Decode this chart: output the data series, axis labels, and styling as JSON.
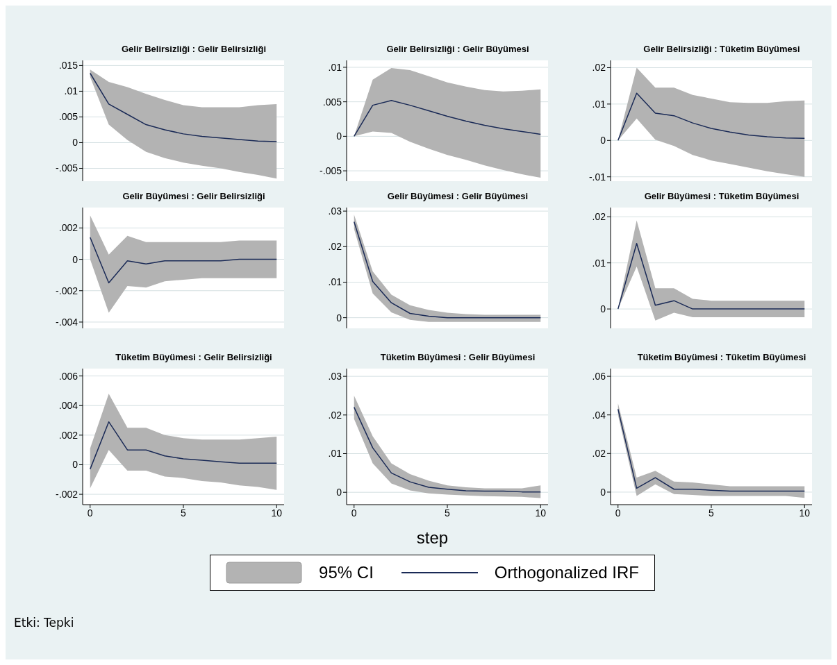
{
  "chart_data": [
    {
      "type": "line",
      "title": "Gelir Belirsizliği : Gelir Belirsizliği",
      "x": [
        0,
        1,
        2,
        3,
        4,
        5,
        6,
        7,
        8,
        9,
        10
      ],
      "xlim": [
        -0.4,
        10.4
      ],
      "xticks": [
        0,
        5,
        10
      ],
      "ylim": [
        -0.0075,
        0.016
      ],
      "yticks": [
        {
          "value": 0.015,
          "label": ".015"
        },
        {
          "value": 0.01,
          "label": ".01"
        },
        {
          "value": 0.005,
          "label": ".005"
        },
        {
          "value": 0,
          "label": "0"
        },
        {
          "value": -0.005,
          "label": "-.005"
        }
      ],
      "grid": "y",
      "tick_labels": "y",
      "series": [
        {
          "color": "#1a2a56",
          "values": [
            0.0135,
            0.0075,
            0.0055,
            0.0035,
            0.0025,
            0.0017,
            0.0012,
            0.0009,
            0.0006,
            0.0003,
            0.0002
          ],
          "lower": [
            0.0128,
            0.0035,
            0.0005,
            -0.0018,
            -0.003,
            -0.0039,
            -0.0045,
            -0.005,
            -0.0057,
            -0.0063,
            -0.007
          ],
          "upper": [
            0.0142,
            0.0118,
            0.0108,
            0.0095,
            0.0083,
            0.0073,
            0.0069,
            0.0069,
            0.0069,
            0.0073,
            0.0075
          ]
        }
      ]
    },
    {
      "type": "line",
      "title": "Gelir Belirsizliği : Gelir Büyümesi",
      "x": [
        0,
        1,
        2,
        3,
        4,
        5,
        6,
        7,
        8,
        9,
        10
      ],
      "xlim": [
        -0.4,
        10.4
      ],
      "xticks": [
        0,
        5,
        10
      ],
      "ylim": [
        -0.0065,
        0.011
      ],
      "yticks": [
        {
          "value": 0.01,
          "label": ".01"
        },
        {
          "value": 0.005,
          "label": ".005"
        },
        {
          "value": 0,
          "label": "0"
        },
        {
          "value": -0.005,
          "label": "-.005"
        }
      ],
      "grid": "y",
      "tick_labels": "y",
      "series": [
        {
          "color": "#1a2a56",
          "values": [
            0,
            0.0045,
            0.0052,
            0.0045,
            0.0037,
            0.0029,
            0.0022,
            0.0016,
            0.0011,
            0.0007,
            0.0003
          ],
          "lower": [
            0,
            0.0007,
            0.0005,
            -0.0008,
            -0.0018,
            -0.0027,
            -0.0034,
            -0.0042,
            -0.0049,
            -0.0055,
            -0.006
          ],
          "upper": [
            0,
            0.0082,
            0.0099,
            0.0096,
            0.0087,
            0.0078,
            0.0072,
            0.0067,
            0.0065,
            0.0066,
            0.0068
          ]
        }
      ]
    },
    {
      "type": "line",
      "title": "Gelir Belirsizliği : Tüketim Büyümesi",
      "x": [
        0,
        1,
        2,
        3,
        4,
        5,
        6,
        7,
        8,
        9,
        10
      ],
      "xlim": [
        -0.4,
        10.4
      ],
      "xticks": [
        0,
        5,
        10
      ],
      "ylim": [
        -0.0112,
        0.022
      ],
      "yticks": [
        {
          "value": 0.02,
          "label": ".02"
        },
        {
          "value": 0.01,
          "label": ".01"
        },
        {
          "value": 0,
          "label": "0"
        },
        {
          "value": -0.01,
          "label": "-.01"
        }
      ],
      "grid": "y",
      "tick_labels": "y",
      "series": [
        {
          "color": "#1a2a56",
          "values": [
            0,
            0.013,
            0.0075,
            0.0068,
            0.0048,
            0.0033,
            0.0023,
            0.0015,
            0.001,
            0.0007,
            0.0006
          ],
          "lower": [
            0,
            0.006,
            0.0002,
            -0.0015,
            -0.004,
            -0.0055,
            -0.0065,
            -0.0075,
            -0.0085,
            -0.0093,
            -0.01
          ],
          "upper": [
            0,
            0.02,
            0.0145,
            0.0145,
            0.0125,
            0.0115,
            0.0105,
            0.0103,
            0.0103,
            0.0108,
            0.011
          ]
        }
      ]
    },
    {
      "type": "line",
      "title": "Gelir Büyümesi : Gelir Belirsizliği",
      "x": [
        0,
        1,
        2,
        3,
        4,
        5,
        6,
        7,
        8,
        9,
        10
      ],
      "xlim": [
        -0.4,
        10.4
      ],
      "xticks": [
        0,
        5,
        10
      ],
      "ylim": [
        -0.0044,
        0.0033
      ],
      "yticks": [
        {
          "value": 0.002,
          "label": ".002"
        },
        {
          "value": 0,
          "label": "0"
        },
        {
          "value": -0.002,
          "label": "-.002"
        },
        {
          "value": -0.004,
          "label": "-.004"
        }
      ],
      "grid": "y",
      "tick_labels": "y",
      "series": [
        {
          "color": "#1a2a56",
          "values": [
            0.0014,
            -0.0015,
            -0.0001,
            -0.0003,
            -0.0001,
            -0.0001,
            -0.0001,
            -0.0001,
            0,
            0,
            0
          ],
          "lower": [
            0,
            -0.0034,
            -0.0017,
            -0.0018,
            -0.0014,
            -0.0013,
            -0.0012,
            -0.0012,
            -0.0012,
            -0.0012,
            -0.0012
          ],
          "upper": [
            0.0028,
            0.0003,
            0.0015,
            0.0011,
            0.0011,
            0.0011,
            0.0011,
            0.0011,
            0.0012,
            0.0012,
            0.0012
          ]
        }
      ]
    },
    {
      "type": "line",
      "title": "Gelir Büyümesi : Gelir Büyümesi",
      "x": [
        0,
        1,
        2,
        3,
        4,
        5,
        6,
        7,
        8,
        9,
        10
      ],
      "xlim": [
        -0.4,
        10.4
      ],
      "xticks": [
        0,
        5,
        10
      ],
      "ylim": [
        -0.003,
        0.031
      ],
      "yticks": [
        {
          "value": 0.03,
          "label": ".03"
        },
        {
          "value": 0.02,
          "label": ".02"
        },
        {
          "value": 0.01,
          "label": ".01"
        },
        {
          "value": 0,
          "label": "0"
        }
      ],
      "grid": "y",
      "tick_labels": "y",
      "series": [
        {
          "color": "#1a2a56",
          "values": [
            0.027,
            0.0102,
            0.0042,
            0.0012,
            0.0004,
            0,
            0,
            0,
            0,
            0,
            0
          ],
          "lower": [
            0.025,
            0.0068,
            0.0015,
            -0.0006,
            -0.0012,
            -0.0012,
            -0.0012,
            -0.0012,
            -0.0012,
            -0.0012,
            -0.0012
          ],
          "upper": [
            0.029,
            0.013,
            0.0065,
            0.0035,
            0.0022,
            0.0014,
            0.001,
            0.0008,
            0.0008,
            0.0008,
            0.0008
          ]
        }
      ]
    },
    {
      "type": "line",
      "title": "Gelir Büyümesi : Tüketim Büyümesi",
      "x": [
        0,
        1,
        2,
        3,
        4,
        5,
        6,
        7,
        8,
        9,
        10
      ],
      "xlim": [
        -0.4,
        10.4
      ],
      "xticks": [
        0,
        5,
        10
      ],
      "ylim": [
        -0.0042,
        0.022
      ],
      "yticks": [
        {
          "value": 0.02,
          "label": ".02"
        },
        {
          "value": 0.01,
          "label": ".01"
        },
        {
          "value": 0,
          "label": "0"
        }
      ],
      "grid": "y",
      "tick_labels": "y",
      "series": [
        {
          "color": "#1a2a56",
          "values": [
            0,
            0.0142,
            0.0008,
            0.0018,
            0,
            0,
            0,
            0,
            0,
            0,
            0
          ],
          "lower": [
            0,
            0.0092,
            -0.0025,
            -0.0008,
            -0.0018,
            -0.0018,
            -0.0018,
            -0.0018,
            -0.0018,
            -0.0018,
            -0.0018
          ],
          "upper": [
            0,
            0.0192,
            0.0045,
            0.0045,
            0.0022,
            0.0018,
            0.0018,
            0.0018,
            0.0018,
            0.0018,
            0.0018
          ]
        }
      ]
    },
    {
      "type": "line",
      "title": "Tüketim Büyümesi : Gelir Belirsizliği",
      "x": [
        0,
        1,
        2,
        3,
        4,
        5,
        6,
        7,
        8,
        9,
        10
      ],
      "xlim": [
        -0.4,
        10.4
      ],
      "xticks": [
        0,
        5,
        10
      ],
      "ylim": [
        -0.0027,
        0.0065
      ],
      "yticks": [
        {
          "value": 0.006,
          "label": ".006"
        },
        {
          "value": 0.004,
          "label": ".004"
        },
        {
          "value": 0.002,
          "label": ".002"
        },
        {
          "value": 0,
          "label": "0"
        },
        {
          "value": -0.002,
          "label": "-.002"
        }
      ],
      "grid": "y",
      "series": [
        {
          "color": "#1a2a56",
          "values": [
            -0.0003,
            0.0029,
            0.001,
            0.001,
            0.0006,
            0.0004,
            0.0003,
            0.0002,
            0.0001,
            0.0001,
            0.0001
          ],
          "lower": [
            -0.0016,
            0.001,
            -0.0004,
            -0.0004,
            -0.0008,
            -0.0009,
            -0.0011,
            -0.0012,
            -0.0014,
            -0.0015,
            -0.0017
          ],
          "upper": [
            0.0011,
            0.0048,
            0.0025,
            0.0025,
            0.002,
            0.0018,
            0.0017,
            0.0017,
            0.0017,
            0.0018,
            0.0019
          ]
        }
      ]
    },
    {
      "type": "line",
      "title": "Tüketim Büyümesi : Gelir Büyümesi",
      "xlabel": "step",
      "legend": "bottom",
      "annotations": [
        "95% CI",
        "Etki: Tepki"
      ],
      "x": [
        0,
        1,
        2,
        3,
        4,
        5,
        6,
        7,
        8,
        9,
        10
      ],
      "xlim": [
        -0.4,
        10.4
      ],
      "xticks": [
        0,
        5,
        10
      ],
      "ylim": [
        -0.0032,
        0.032
      ],
      "yticks": [
        {
          "value": 0.03,
          "label": ".03"
        },
        {
          "value": 0.02,
          "label": ".02"
        },
        {
          "value": 0.01,
          "label": ".01"
        },
        {
          "value": 0,
          "label": "0"
        }
      ],
      "grid": "y",
      "series": [
        {
          "name": "Orthogonalized IRF",
          "color": "#1a2a56",
          "values": [
            0.022,
            0.0115,
            0.005,
            0.0027,
            0.0013,
            0.0008,
            0.0004,
            0.0003,
            0.0003,
            0.0001,
            0.0001
          ],
          "lower": [
            0.019,
            0.0075,
            0.0023,
            0.0005,
            -0.0003,
            -0.0006,
            -0.0008,
            -0.001,
            -0.0011,
            -0.0012,
            -0.0015
          ],
          "upper": [
            0.025,
            0.0145,
            0.0075,
            0.0047,
            0.003,
            0.0018,
            0.0013,
            0.001,
            0.001,
            0.001,
            0.0018
          ]
        }
      ]
    },
    {
      "type": "line",
      "title": "Tüketim Büyümesi : Tüketim Büyümesi",
      "x": [
        0,
        1,
        2,
        3,
        4,
        5,
        6,
        7,
        8,
        9,
        10
      ],
      "xlim": [
        -0.4,
        10.4
      ],
      "xticks": [
        0,
        5,
        10
      ],
      "ylim": [
        -0.0065,
        0.064
      ],
      "yticks": [
        {
          "value": 0.06,
          "label": ".06"
        },
        {
          "value": 0.04,
          "label": ".04"
        },
        {
          "value": 0.02,
          "label": ".02"
        },
        {
          "value": 0,
          "label": "0"
        }
      ],
      "grid": "y",
      "series": [
        {
          "color": "#1a2a56",
          "values": [
            0.043,
            0.002,
            0.0075,
            0.0015,
            0.0015,
            0.001,
            0.0005,
            0.0005,
            0.0005,
            0.0005,
            0.0005
          ],
          "lower": [
            0.04,
            -0.002,
            0.004,
            -0.001,
            -0.0015,
            -0.002,
            -0.002,
            -0.002,
            -0.002,
            -0.002,
            -0.003
          ],
          "upper": [
            0.046,
            0.0075,
            0.011,
            0.0055,
            0.005,
            0.004,
            0.003,
            0.003,
            0.003,
            0.003,
            0.003
          ]
        }
      ]
    }
  ]
}
